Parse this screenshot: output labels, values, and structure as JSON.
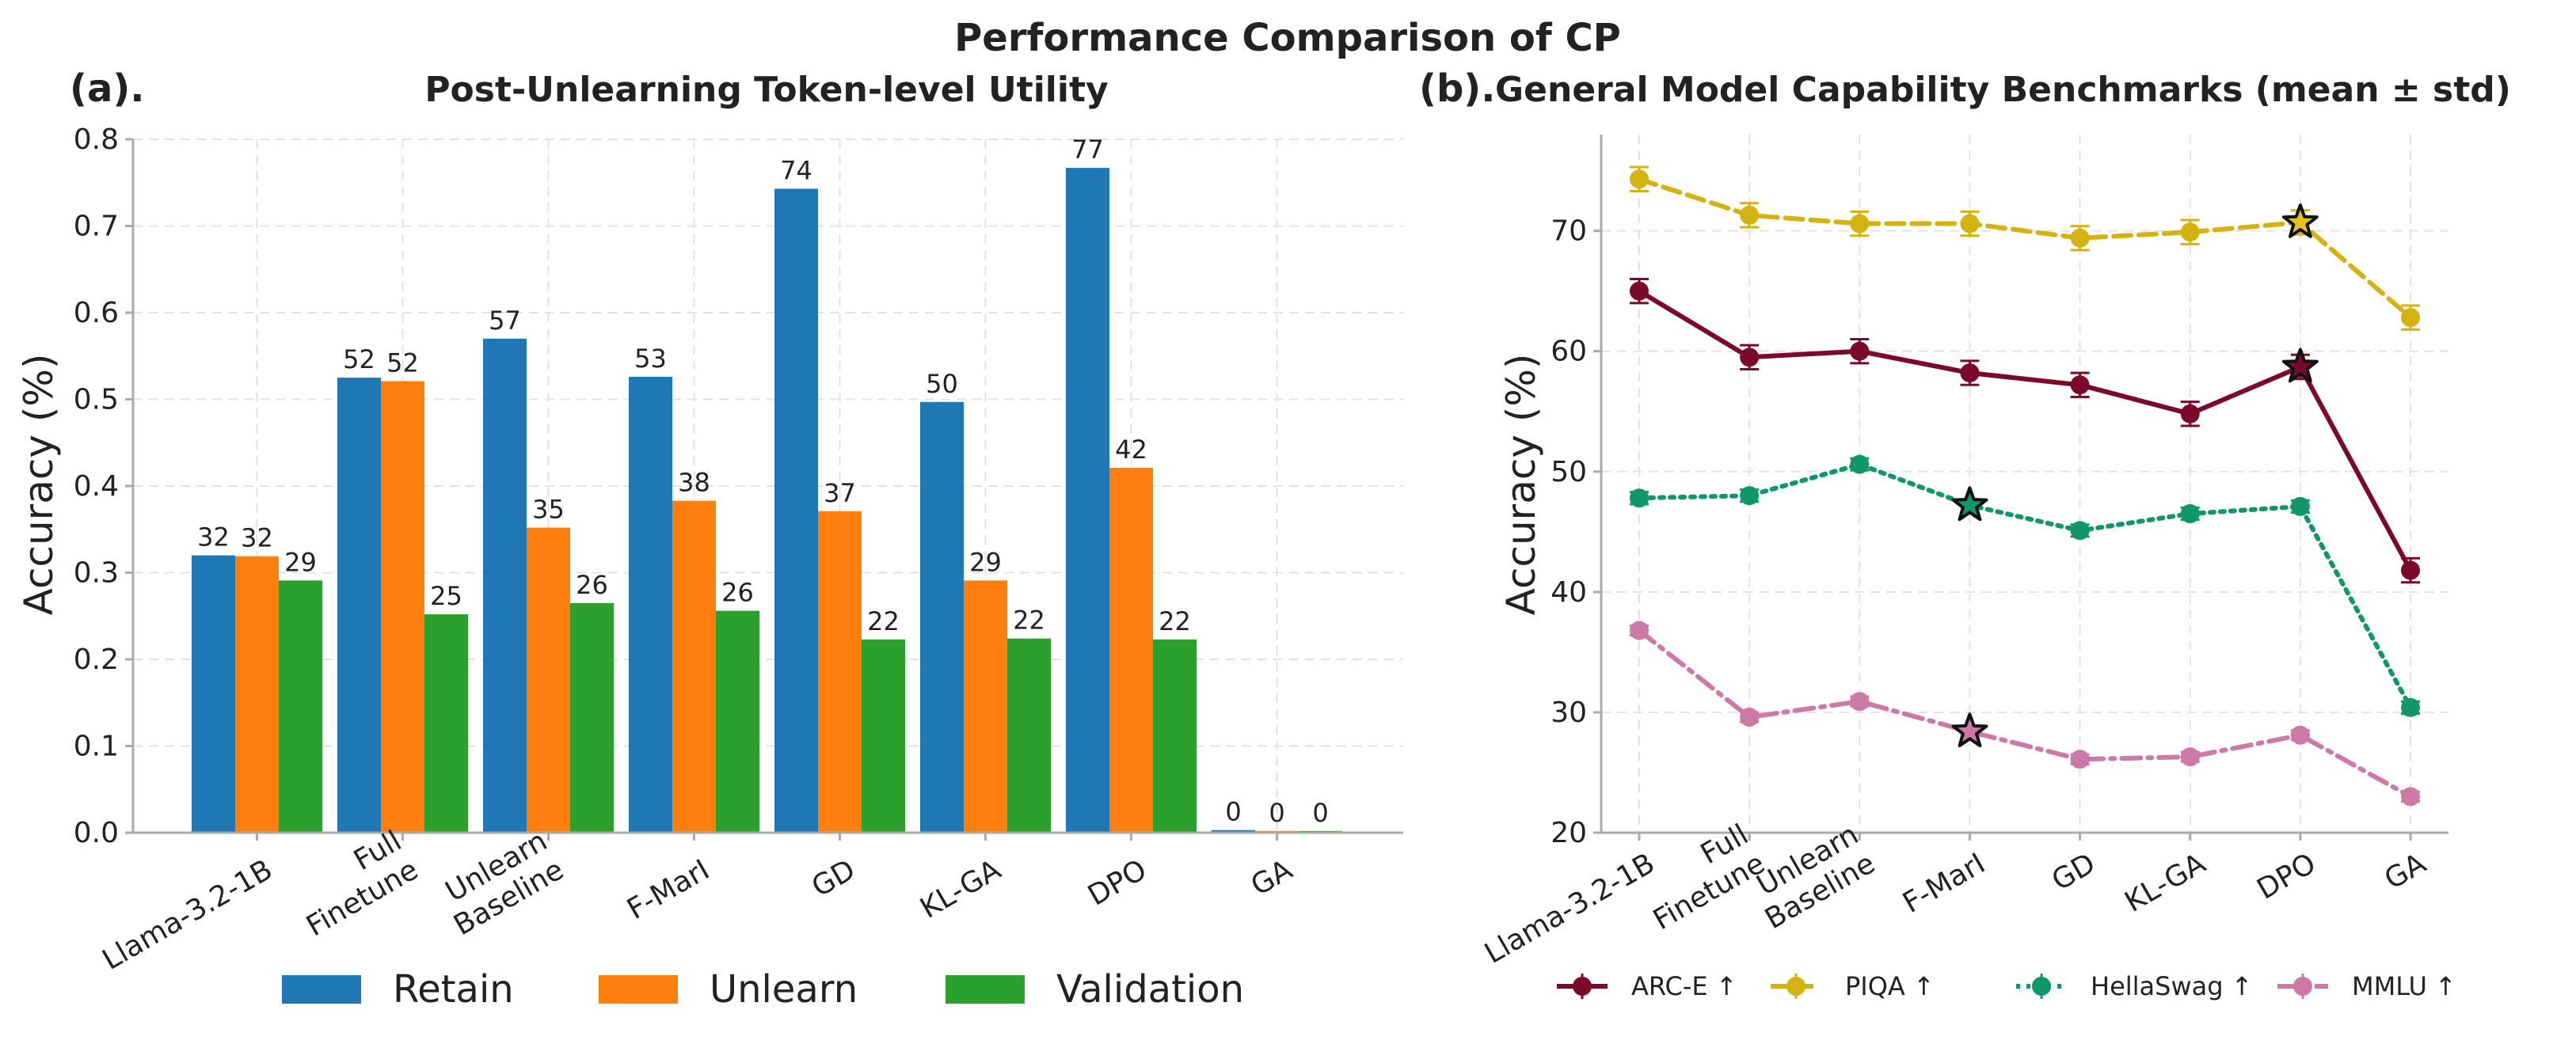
{
  "figure": {
    "suptitle": "Performance Comparison of CP"
  },
  "colors": {
    "retain": "#1f77b4",
    "unlearn": "#ff7f0e",
    "validation": "#2ca02c",
    "arc": "#7b0a2a",
    "piqa": "#d4b20f",
    "hellaswag": "#11966a",
    "mmlu": "#cc79a7",
    "star_arc": "#7b0a2a",
    "star_piqa": "#e7c21f",
    "star_hellaswag": "#11966a",
    "star_mmlu": "#cc79a7"
  },
  "chart_data": [
    {
      "type": "bar",
      "panel_label": "(a).",
      "title": "Post-Unlearning Token-level Utility",
      "ylabel": "Accuracy (%)",
      "xlabel": "",
      "ylim": [
        0,
        0.8
      ],
      "yticks": [
        "0.0",
        "0.1",
        "0.2",
        "0.3",
        "0.4",
        "0.5",
        "0.6",
        "0.7",
        "0.8"
      ],
      "grid": true,
      "legend_position": "bottom-center",
      "categories": [
        "Llama-3.2-1B",
        "Full\nFinetune",
        "Unlearn\nBaseline",
        "F-MarI",
        "GD",
        "KL-GA",
        "DPO",
        "GA"
      ],
      "series": [
        {
          "name": "Retain",
          "key": "retain",
          "values": [
            0.32,
            0.525,
            0.57,
            0.526,
            0.743,
            0.497,
            0.767,
            0.003
          ],
          "labels": [
            "32",
            "52",
            "57",
            "53",
            "74",
            "50",
            "77",
            "0"
          ]
        },
        {
          "name": "Unlearn",
          "key": "unlearn",
          "values": [
            0.319,
            0.521,
            0.352,
            0.383,
            0.371,
            0.291,
            0.421,
            0.002
          ],
          "labels": [
            "32",
            "52",
            "35",
            "38",
            "37",
            "29",
            "42",
            "0"
          ]
        },
        {
          "name": "Validation",
          "key": "validation",
          "values": [
            0.291,
            0.252,
            0.265,
            0.256,
            0.223,
            0.224,
            0.223,
            0.002
          ],
          "labels": [
            "29",
            "25",
            "26",
            "26",
            "22",
            "22",
            "22",
            "0"
          ]
        }
      ]
    },
    {
      "type": "line",
      "panel_label": "(b).",
      "title": "General Model Capability Benchmarks (mean ± std)",
      "ylabel": "Accuracy (%)",
      "xlabel": "",
      "ylim": [
        20,
        78
      ],
      "yticks": [
        "20",
        "30",
        "40",
        "50",
        "60",
        "70"
      ],
      "grid": true,
      "legend_position": "bottom",
      "categories": [
        "Llama-3.2-1B",
        "Full\nFinetune",
        "Unlearn\nBaseline",
        "F-MarI",
        "GD",
        "KL-GA",
        "DPO",
        "GA"
      ],
      "series": [
        {
          "name": "ARC-E ↑",
          "key": "arc",
          "dash": "solid",
          "values": [
            65.0,
            59.5,
            60.0,
            58.2,
            57.2,
            54.8,
            58.7,
            41.8
          ],
          "std": [
            1.0,
            1.0,
            1.0,
            1.0,
            1.0,
            1.0,
            1.0,
            1.0
          ],
          "star_index": 6
        },
        {
          "name": "PIQA ↑",
          "key": "piqa",
          "dash": "dashed",
          "values": [
            74.3,
            71.3,
            70.6,
            70.6,
            69.4,
            69.9,
            70.7,
            62.8
          ],
          "std": [
            1.0,
            1.0,
            1.0,
            1.0,
            1.0,
            1.0,
            1.0,
            1.0
          ],
          "star_index": 6
        },
        {
          "name": "HellaSwag ↑",
          "key": "hellaswag",
          "dash": "dotted",
          "values": [
            47.8,
            48.0,
            50.6,
            47.2,
            45.1,
            46.5,
            47.1,
            30.4
          ],
          "std": [
            0.5,
            0.5,
            0.5,
            0.5,
            0.5,
            0.5,
            0.5,
            0.5
          ],
          "star_index": 3
        },
        {
          "name": "MMLU ↑",
          "key": "mmlu",
          "dash": "dashdot",
          "values": [
            36.8,
            29.6,
            30.9,
            28.4,
            26.1,
            26.3,
            28.1,
            23.0
          ],
          "std": [
            0.4,
            0.4,
            0.4,
            0.4,
            0.4,
            0.4,
            0.4,
            0.4
          ],
          "star_index": 3
        }
      ]
    }
  ]
}
